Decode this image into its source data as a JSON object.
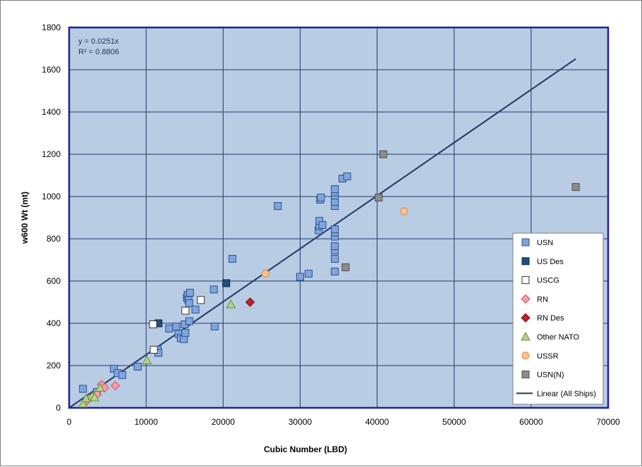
{
  "chart_data": {
    "type": "scatter",
    "xlabel": "Cubic Number (LBD)",
    "ylabel": "w600 Wt (mt)",
    "xlim": [
      0,
      70000
    ],
    "ylim": [
      0,
      1800
    ],
    "x_ticks": [
      "0",
      "10000",
      "20000",
      "30000",
      "40000",
      "50000",
      "60000",
      "70000"
    ],
    "y_ticks": [
      "0",
      "200",
      "400",
      "600",
      "800",
      "1000",
      "1200",
      "1400",
      "1600",
      "1800"
    ],
    "grid": true,
    "legend_position": "right",
    "annotation": {
      "equation": "y = 0.0251x",
      "r_squared": "R² = 0.8806"
    },
    "trendline": {
      "name": "Linear (All Ships)",
      "slope": 0.0251,
      "x": [
        0,
        65800
      ],
      "color": "#1f3864"
    },
    "series": [
      {
        "name": "USN",
        "marker": "square",
        "fill": "#7ea6dc",
        "stroke": "#2f4f8f",
        "points": [
          [
            1800,
            90
          ],
          [
            3600,
            75
          ],
          [
            5800,
            185
          ],
          [
            6300,
            165
          ],
          [
            6900,
            155
          ],
          [
            8900,
            195
          ],
          [
            11500,
            275
          ],
          [
            11600,
            260
          ],
          [
            13000,
            375
          ],
          [
            13900,
            385
          ],
          [
            14200,
            350
          ],
          [
            14500,
            330
          ],
          [
            14900,
            325
          ],
          [
            15000,
            395
          ],
          [
            15100,
            355
          ],
          [
            15300,
            520
          ],
          [
            15400,
            535
          ],
          [
            15500,
            510
          ],
          [
            15600,
            495
          ],
          [
            15600,
            410
          ],
          [
            15700,
            545
          ],
          [
            16400,
            465
          ],
          [
            18800,
            560
          ],
          [
            18900,
            385
          ],
          [
            21200,
            705
          ],
          [
            27100,
            955
          ],
          [
            30000,
            620
          ],
          [
            31100,
            635
          ],
          [
            32400,
            840
          ],
          [
            32500,
            860
          ],
          [
            32500,
            885
          ],
          [
            32600,
            985
          ],
          [
            32700,
            995
          ],
          [
            32900,
            865
          ],
          [
            34500,
            645
          ],
          [
            34500,
            705
          ],
          [
            34500,
            745
          ],
          [
            34500,
            765
          ],
          [
            34500,
            810
          ],
          [
            34500,
            830
          ],
          [
            34500,
            845
          ],
          [
            34500,
            955
          ],
          [
            34500,
            975
          ],
          [
            34500,
            1005
          ],
          [
            34500,
            1020
          ],
          [
            34500,
            1035
          ],
          [
            35500,
            1085
          ],
          [
            36100,
            1095
          ]
        ]
      },
      {
        "name": "US Des",
        "marker": "square",
        "fill": "#1f4e79",
        "stroke": "#0f2a4a",
        "points": [
          [
            11600,
            400
          ],
          [
            20400,
            590
          ]
        ]
      },
      {
        "name": "USCG",
        "marker": "square",
        "fill": "#ffffff",
        "stroke": "#333333",
        "points": [
          [
            10900,
            395
          ],
          [
            11000,
            275
          ],
          [
            15100,
            460
          ],
          [
            17100,
            510
          ]
        ]
      },
      {
        "name": "RN",
        "marker": "diamond",
        "fill": "#f4a0a8",
        "stroke": "#d9535f",
        "points": [
          [
            2300,
            35
          ],
          [
            3600,
            65
          ],
          [
            4200,
            110
          ],
          [
            4600,
            95
          ],
          [
            6000,
            105
          ]
        ]
      },
      {
        "name": "RN Des",
        "marker": "diamond",
        "fill": "#c0202a",
        "stroke": "#7f1018",
        "points": [
          [
            23500,
            500
          ]
        ]
      },
      {
        "name": "Other NATO",
        "marker": "triangle",
        "fill": "#b5d18a",
        "stroke": "#6b8e3a",
        "points": [
          [
            1800,
            20
          ],
          [
            2200,
            45
          ],
          [
            3000,
            55
          ],
          [
            3300,
            50
          ],
          [
            4000,
            95
          ],
          [
            10100,
            225
          ],
          [
            21000,
            490
          ]
        ]
      },
      {
        "name": "USSR",
        "marker": "circle",
        "fill": "#fbc290",
        "stroke": "#e08a3c",
        "points": [
          [
            25500,
            635
          ],
          [
            43500,
            930
          ]
        ]
      },
      {
        "name": "USN(N)",
        "marker": "square",
        "fill": "#8c8c8c",
        "stroke": "#4d4d4d",
        "points": [
          [
            35900,
            665
          ],
          [
            40200,
            995
          ],
          [
            40800,
            1200
          ],
          [
            65800,
            1045
          ]
        ]
      }
    ]
  }
}
